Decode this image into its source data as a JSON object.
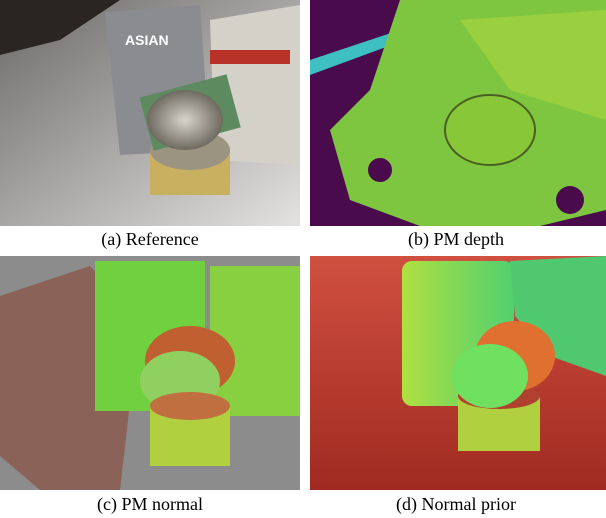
{
  "figure": {
    "panels": [
      {
        "caption": "(a) Reference"
      },
      {
        "caption": "(b) PM depth"
      },
      {
        "caption": "(c) PM normal"
      },
      {
        "caption": "(d) Normal prior"
      }
    ]
  }
}
